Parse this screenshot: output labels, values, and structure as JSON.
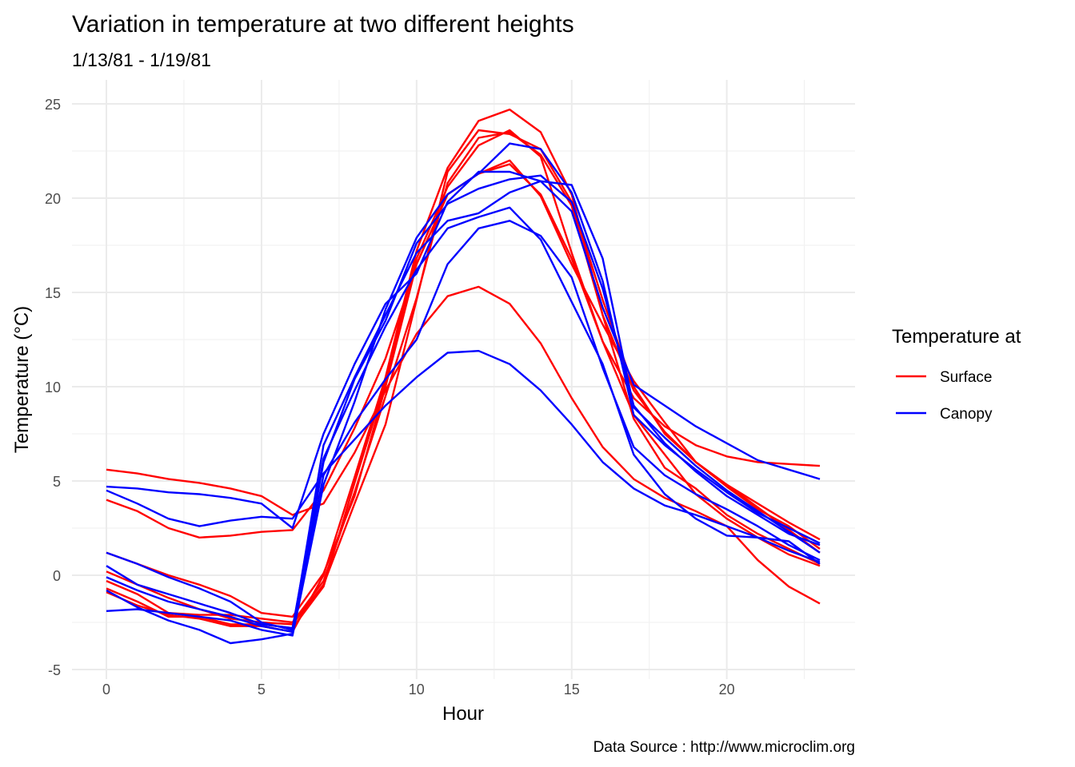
{
  "chart_data": {
    "type": "line",
    "title": "Variation in temperature at two different heights",
    "subtitle": "1/13/81 - 1/19/81",
    "xlabel": "Hour",
    "ylabel": "Temperature (°C)",
    "caption": "Data Source : http://www.microclim.org",
    "legend_title": "Temperature at",
    "legend_placement": "right",
    "xlim": [
      0,
      23
    ],
    "ylim": [
      -5,
      25
    ],
    "x_ticks": [
      0,
      5,
      10,
      15,
      20
    ],
    "y_ticks": [
      -5,
      0,
      5,
      10,
      15,
      20,
      25
    ],
    "grid": true,
    "x": [
      0,
      1,
      2,
      3,
      4,
      5,
      6,
      7,
      8,
      9,
      10,
      11,
      12,
      13,
      14,
      15,
      16,
      17,
      18,
      19,
      20,
      21,
      22,
      23
    ],
    "groups": [
      {
        "name": "Surface",
        "color": "#ff0000",
        "series": [
          [
            5.6,
            5.4,
            5.1,
            4.9,
            4.6,
            4.2,
            3.2,
            3.8,
            6.5,
            9.8,
            12.8,
            14.8,
            15.3,
            14.4,
            12.3,
            9.4,
            6.8,
            5.1,
            4.1,
            3.4,
            2.6,
            0.8,
            -0.6,
            -1.5
          ],
          [
            4.0,
            3.4,
            2.5,
            2.0,
            2.1,
            2.3,
            2.4,
            4.5,
            7.8,
            11.5,
            16.5,
            20.2,
            21.3,
            21.8,
            20.2,
            16.8,
            12.4,
            9.4,
            7.9,
            6.9,
            6.3,
            6.0,
            5.9,
            5.8
          ],
          [
            1.2,
            0.6,
            0.0,
            -0.5,
            -1.1,
            -2.0,
            -2.2,
            0.1,
            4.2,
            10.0,
            16.5,
            20.2,
            21.3,
            22.0,
            20.1,
            16.5,
            13.3,
            10.3,
            8.1,
            6.0,
            4.8,
            3.8,
            2.8,
            1.9
          ],
          [
            -0.3,
            -1.0,
            -2.0,
            -2.1,
            -2.1,
            -2.3,
            -2.5,
            -0.3,
            4.4,
            9.5,
            14.7,
            20.8,
            23.2,
            23.5,
            22.3,
            19.6,
            13.8,
            9.8,
            7.6,
            6.0,
            4.8,
            3.6,
            2.4,
            1.2
          ],
          [
            0.2,
            -0.5,
            -1.2,
            -1.8,
            -2.3,
            -2.5,
            -2.6,
            -0.5,
            3.8,
            8.0,
            14.6,
            21.4,
            23.6,
            23.4,
            22.6,
            19.8,
            14.6,
            10.0,
            7.5,
            6.0,
            4.7,
            3.5,
            2.6,
            1.4
          ],
          [
            -0.7,
            -1.4,
            -2.2,
            -2.2,
            -2.6,
            -2.6,
            -2.8,
            -0.6,
            4.9,
            10.2,
            16.8,
            20.6,
            22.8,
            23.6,
            22.2,
            17.1,
            12.4,
            8.5,
            6.4,
            4.3,
            3.0,
            2.0,
            1.1,
            0.5
          ],
          [
            -0.9,
            -1.6,
            -2.1,
            -2.3,
            -2.7,
            -2.7,
            -3.0,
            0.0,
            5.2,
            10.5,
            17.2,
            21.6,
            24.1,
            24.7,
            23.5,
            20.2,
            13.8,
            8.3,
            5.7,
            4.6,
            3.2,
            2.2,
            1.4,
            0.6
          ]
        ]
      },
      {
        "name": "Canopy",
        "color": "#0000ff",
        "series": [
          [
            4.7,
            4.6,
            4.4,
            4.3,
            4.1,
            3.8,
            2.5,
            7.5,
            11.2,
            14.4,
            16.0,
            19.8,
            21.4,
            21.4,
            20.9,
            19.3,
            14.2,
            10.1,
            9.0,
            7.9,
            7.0,
            6.1,
            5.6,
            5.1
          ],
          [
            4.5,
            3.8,
            3.0,
            2.6,
            2.9,
            3.1,
            3.0,
            5.4,
            7.2,
            9.0,
            10.5,
            11.8,
            11.9,
            11.2,
            9.8,
            8.0,
            6.0,
            4.6,
            3.7,
            3.2,
            2.6,
            2.0,
            1.3,
            0.7
          ],
          [
            1.2,
            0.6,
            -0.1,
            -0.7,
            -1.4,
            -2.5,
            -2.9,
            5.3,
            8.1,
            10.4,
            12.5,
            16.5,
            18.4,
            18.8,
            18.0,
            15.8,
            11.0,
            6.8,
            5.3,
            4.3,
            3.5,
            2.6,
            1.6,
            0.8
          ],
          [
            0.5,
            -0.5,
            -1.0,
            -1.5,
            -2.0,
            -2.6,
            -2.8,
            6.2,
            9.8,
            13.2,
            16.2,
            18.4,
            19.0,
            19.5,
            17.8,
            14.5,
            11.2,
            6.4,
            4.3,
            3.0,
            2.1,
            2.0,
            1.8,
            0.6
          ],
          [
            -0.1,
            -0.8,
            -1.4,
            -1.8,
            -2.2,
            -2.7,
            -3.0,
            6.9,
            10.5,
            13.8,
            17.1,
            18.8,
            19.2,
            20.3,
            20.9,
            20.7,
            16.8,
            8.9,
            7.3,
            5.8,
            4.5,
            3.4,
            2.3,
            1.2
          ],
          [
            -0.8,
            -1.7,
            -2.4,
            -2.9,
            -3.6,
            -3.4,
            -3.1,
            6.0,
            10.4,
            13.5,
            17.6,
            19.7,
            20.5,
            21.0,
            21.2,
            19.8,
            15.2,
            9.0,
            7.0,
            5.5,
            4.2,
            3.2,
            2.2,
            1.6
          ],
          [
            -1.9,
            -1.8,
            -2.0,
            -2.2,
            -2.4,
            -2.9,
            -3.2,
            4.8,
            9.2,
            14.1,
            17.9,
            20.2,
            21.3,
            22.9,
            22.6,
            20.3,
            15.6,
            8.5,
            6.9,
            5.6,
            4.4,
            3.3,
            2.5,
            1.7
          ]
        ]
      }
    ]
  }
}
